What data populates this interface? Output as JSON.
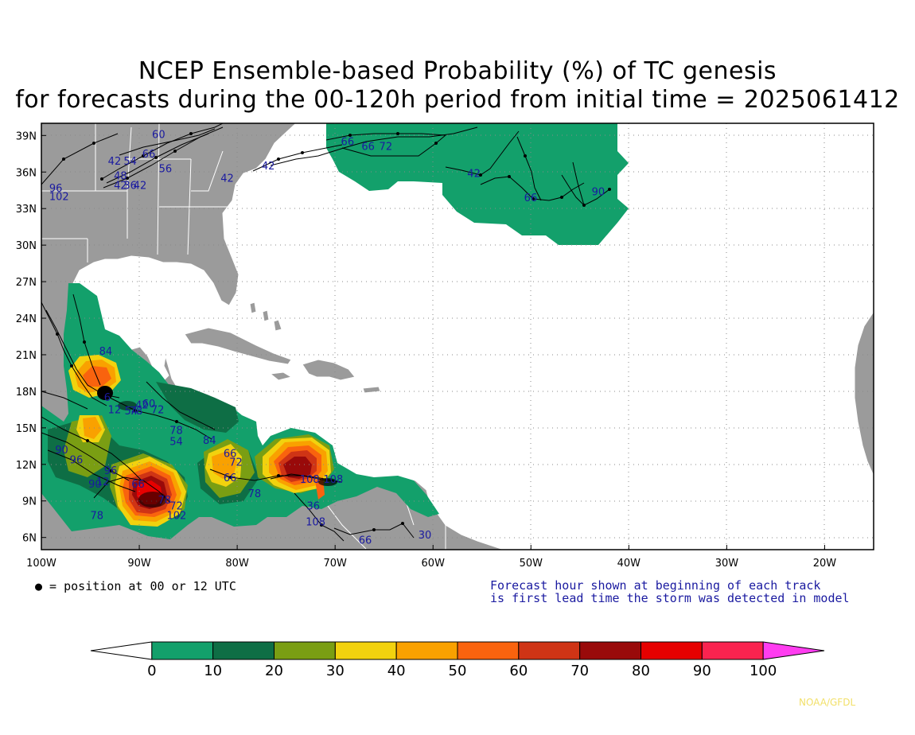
{
  "title": {
    "line1": "NCEP Ensemble-based Probability (%) of TC genesis",
    "line2": "for forecasts during the 00-120h period from initial time = 2025061412"
  },
  "map": {
    "lon_range": [
      -100,
      -15
    ],
    "lat_range": [
      5,
      40
    ],
    "lat_ticks": [
      "39N",
      "36N",
      "33N",
      "30N",
      "27N",
      "24N",
      "21N",
      "18N",
      "15N",
      "12N",
      "9N",
      "6N"
    ],
    "lon_ticks": [
      "100W",
      "90W",
      "80W",
      "70W",
      "60W",
      "50W",
      "40W",
      "30W",
      "20W"
    ],
    "colors": {
      "land": "#9b9b9b",
      "ocean": "#ffffff",
      "borders": "#ffffff",
      "tracks": "#000000",
      "labels": "#1a1aa0"
    }
  },
  "probability_areas": [
    {
      "region": "North Atlantic east",
      "level": 10
    },
    {
      "region": "Gulf of Mexico west",
      "level": 10
    },
    {
      "region": "Bay of Campeche",
      "level": 50
    },
    {
      "region": "Eastern Pacific off Guatemala",
      "level": 90
    },
    {
      "region": "Gulf of Tehuantepec",
      "level": 40
    },
    {
      "region": "Southwest Caribbean",
      "level": 40
    },
    {
      "region": "Central Caribbean",
      "level": 80
    }
  ],
  "track_labels": [
    {
      "text": "42",
      "lon": -93.2,
      "lat": 36.6
    },
    {
      "text": "54",
      "lon": -91.6,
      "lat": 36.6
    },
    {
      "text": "48",
      "lon": -92.6,
      "lat": 35.4
    },
    {
      "text": "42",
      "lon": -92.6,
      "lat": 34.6
    },
    {
      "text": "36",
      "lon": -91.6,
      "lat": 34.6
    },
    {
      "text": "42",
      "lon": -90.6,
      "lat": 34.6
    },
    {
      "text": "60",
      "lon": -88.7,
      "lat": 38.8
    },
    {
      "text": "66",
      "lon": -89.7,
      "lat": 37.2
    },
    {
      "text": "56",
      "lon": -88.0,
      "lat": 36.0
    },
    {
      "text": "42",
      "lon": -81.7,
      "lat": 35.2
    },
    {
      "text": "42",
      "lon": -77.5,
      "lat": 36.2
    },
    {
      "text": "96",
      "lon": -99.2,
      "lat": 34.4
    },
    {
      "text": "102",
      "lon": -99.2,
      "lat": 33.7
    },
    {
      "text": "66",
      "lon": -69.4,
      "lat": 38.2
    },
    {
      "text": "66",
      "lon": -67.3,
      "lat": 37.8
    },
    {
      "text": "72",
      "lon": -65.5,
      "lat": 37.8
    },
    {
      "text": "42",
      "lon": -56.5,
      "lat": 35.6
    },
    {
      "text": "66",
      "lon": -50.7,
      "lat": 33.6
    },
    {
      "text": "90",
      "lon": -43.8,
      "lat": 34.1
    },
    {
      "text": "84",
      "lon": -94.1,
      "lat": 21.0
    },
    {
      "text": "6",
      "lon": -93.6,
      "lat": 17.2
    },
    {
      "text": "12",
      "lon": -93.2,
      "lat": 16.2
    },
    {
      "text": "54",
      "lon": -91.5,
      "lat": 16.1
    },
    {
      "text": "78",
      "lon": -91.0,
      "lat": 16.1
    },
    {
      "text": "42",
      "lon": -90.4,
      "lat": 16.6
    },
    {
      "text": "60",
      "lon": -89.7,
      "lat": 16.7
    },
    {
      "text": "72",
      "lon": -88.8,
      "lat": 16.2
    },
    {
      "text": "78",
      "lon": -86.9,
      "lat": 14.5
    },
    {
      "text": "54",
      "lon": -86.9,
      "lat": 13.6
    },
    {
      "text": "84",
      "lon": -83.5,
      "lat": 13.7
    },
    {
      "text": "90",
      "lon": -98.6,
      "lat": 12.9
    },
    {
      "text": "96",
      "lon": -97.1,
      "lat": 12.1
    },
    {
      "text": "96",
      "lon": -93.6,
      "lat": 11.2
    },
    {
      "text": "90",
      "lon": -95.2,
      "lat": 10.1
    },
    {
      "text": "12",
      "lon": -94.4,
      "lat": 10.3
    },
    {
      "text": "66",
      "lon": -90.8,
      "lat": 10.1
    },
    {
      "text": "78",
      "lon": -95.0,
      "lat": 7.5
    },
    {
      "text": "78",
      "lon": -88.1,
      "lat": 8.8
    },
    {
      "text": "72",
      "lon": -86.9,
      "lat": 8.3
    },
    {
      "text": "102",
      "lon": -87.2,
      "lat": 7.5
    },
    {
      "text": "66",
      "lon": -81.4,
      "lat": 12.6
    },
    {
      "text": "72",
      "lon": -80.8,
      "lat": 11.9
    },
    {
      "text": "66",
      "lon": -81.4,
      "lat": 10.6
    },
    {
      "text": "78",
      "lon": -78.9,
      "lat": 9.3
    },
    {
      "text": "108",
      "lon": -73.6,
      "lat": 10.5
    },
    {
      "text": "108",
      "lon": -71.2,
      "lat": 10.5
    },
    {
      "text": "36",
      "lon": -72.9,
      "lat": 8.3
    },
    {
      "text": "108",
      "lon": -73.0,
      "lat": 7.0
    },
    {
      "text": "66",
      "lon": -67.6,
      "lat": 5.5
    },
    {
      "text": "30",
      "lon": -61.5,
      "lat": 5.9
    }
  ],
  "colorbar": {
    "bins": [
      {
        "color": "#ffffff"
      },
      {
        "color": "#13a06b"
      },
      {
        "color": "#0e6e45"
      },
      {
        "color": "#7a9e13"
      },
      {
        "color": "#f2d20e"
      },
      {
        "color": "#f9a100"
      },
      {
        "color": "#f9630e"
      },
      {
        "color": "#cf3415"
      },
      {
        "color": "#990a0a"
      },
      {
        "color": "#e60000"
      },
      {
        "color": "#f9234f"
      },
      {
        "color": "#ff3df0"
      }
    ],
    "labels": [
      "0",
      "10",
      "20",
      "30",
      "40",
      "50",
      "60",
      "70",
      "80",
      "90",
      "100"
    ]
  },
  "notes": {
    "legend_dot": "● = position at 00 or 12 UTC",
    "forecast_line1": "Forecast hour shown at beginning of each track",
    "forecast_line2": "is first lead time the storm was detected in model"
  },
  "credit": "NOAA/GFDL"
}
